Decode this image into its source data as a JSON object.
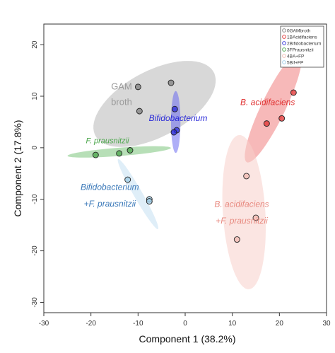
{
  "chart_data": {
    "type": "scatter",
    "xlabel": "Component 1 (38.2%)",
    "ylabel": "Component 2 (17.8%)",
    "xlim": [
      -30,
      30
    ],
    "ylim": [
      -32,
      24
    ],
    "xticks": [
      -30,
      -20,
      -10,
      0,
      10,
      20,
      30
    ],
    "yticks": [
      -30,
      -20,
      -10,
      0,
      10,
      20
    ],
    "grid": false,
    "legend_position": "top-right",
    "legend": [
      {
        "label": "0GAMbroth",
        "color": "#7f7f7f"
      },
      {
        "label": "1BAcidifaciens",
        "color": "#e03030"
      },
      {
        "label": "2Bifidobacterium",
        "color": "#2a2ad8"
      },
      {
        "label": "3FPrausnitzii",
        "color": "#4aa64a"
      },
      {
        "label": "4BA+FP",
        "color": "#f2b8b0"
      },
      {
        "label": "5Bif+FP",
        "color": "#9ccbe6"
      }
    ],
    "series": [
      {
        "group": "GAM broth",
        "color": "#7f7f7f",
        "fill": "#b8b8b8",
        "ellipse": {
          "cx": -6.5,
          "cy": 8.5,
          "rx": 14,
          "ry": 6.5,
          "angle_deg": 25
        },
        "points": [
          [
            -10,
            11.8
          ],
          [
            -3,
            12.6
          ],
          [
            -9.7,
            7.1
          ]
        ]
      },
      {
        "group": "B. acidifaciens",
        "color": "#e03030",
        "fill": "#f08080",
        "ellipse": {
          "cx": 18.7,
          "cy": 7.8,
          "rx": 12,
          "ry": 2.5,
          "angle_deg": 62
        },
        "points": [
          [
            23,
            10.7
          ],
          [
            20.5,
            5.7
          ],
          [
            17.3,
            4.7
          ]
        ]
      },
      {
        "group": "Bifidobacterium",
        "color": "#2a2ad8",
        "fill": "#6c6cf0",
        "ellipse": {
          "cx": -2,
          "cy": 5,
          "rx": 1,
          "ry": 6,
          "angle_deg": 0
        },
        "points": [
          [
            -2.2,
            7.5
          ],
          [
            -1.8,
            3.4
          ],
          [
            -2.4,
            3
          ]
        ]
      },
      {
        "group": "F. prausnitzii",
        "color": "#4aa64a",
        "fill": "#7cc47c",
        "ellipse": {
          "cx": -14,
          "cy": -0.8,
          "rx": 11,
          "ry": 0.8,
          "angle_deg": 4
        },
        "points": [
          [
            -19,
            -1.4
          ],
          [
            -14,
            -1.1
          ],
          [
            -11.7,
            -0.5
          ]
        ]
      },
      {
        "group": "B. acidifaciens +F. prausnitzii",
        "color": "#f2b8b0",
        "fill": "#f7d0ca",
        "ellipse": {
          "cx": 12.5,
          "cy": -12.5,
          "rx": 4.5,
          "ry": 15,
          "angle_deg": 4
        },
        "points": [
          [
            13,
            -5.5
          ],
          [
            15,
            -13.6
          ],
          [
            11,
            -17.8
          ]
        ]
      },
      {
        "group": "Bifidobacterium +F. prausnitzii",
        "color": "#9ccbe6",
        "fill": "#c4e0f2",
        "ellipse": {
          "cx": -10,
          "cy": -9,
          "rx": 8,
          "ry": 0.9,
          "angle_deg": -58
        },
        "points": [
          [
            -12.2,
            -6.2
          ],
          [
            -7.6,
            -10
          ],
          [
            -7.6,
            -10.4
          ]
        ]
      }
    ],
    "annotations": [
      {
        "text": "GAM",
        "x": -13.5,
        "y": 11.3,
        "color": "#9a9a9a",
        "italic": false,
        "size": 13
      },
      {
        "text": "broth",
        "x": -13.5,
        "y": 8.3,
        "color": "#9a9a9a",
        "italic": false,
        "size": 13
      },
      {
        "text": "Bifidobacterium",
        "x": -1.5,
        "y": 5.2,
        "color": "#2a2ad8",
        "italic": true,
        "size": 12
      },
      {
        "text": "B. acidifaciens",
        "x": 17.5,
        "y": 8.3,
        "color": "#e03030",
        "italic": true,
        "size": 12
      },
      {
        "text": "F. prausnitzii",
        "x": -16.5,
        "y": 0.9,
        "color": "#4aa64a",
        "italic": true,
        "size": 11
      },
      {
        "text": "Bifidobacterium",
        "x": -16,
        "y": -8.2,
        "color": "#3a78b8",
        "italic": true,
        "size": 12
      },
      {
        "text": "+F. prausnitzii",
        "x": -16,
        "y": -11.4,
        "color": "#3a78b8",
        "italic": true,
        "size": 12
      },
      {
        "text": "B. acidifaciens",
        "x": 12,
        "y": -11.5,
        "color": "#e88a80",
        "italic": true,
        "size": 12
      },
      {
        "text": "+F. prausnitzii",
        "x": 12,
        "y": -14.7,
        "color": "#e88a80",
        "italic": true,
        "size": 12
      }
    ]
  }
}
